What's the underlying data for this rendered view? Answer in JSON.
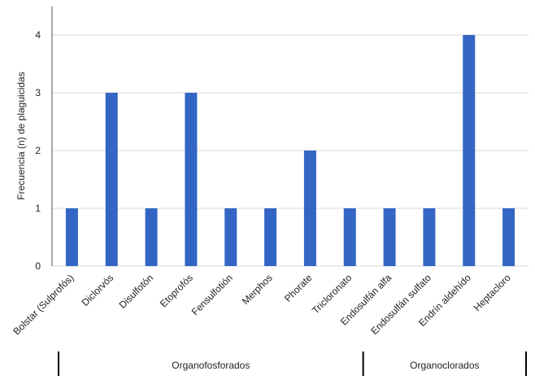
{
  "chart_data": {
    "type": "bar",
    "categories": [
      "Bolstar (Sulprofós)",
      "Diclorvós",
      "Disulfotón",
      "Etoprofós",
      "Fensulfotión",
      "Merphos",
      "Phorate",
      "Tricloronato",
      "Endosulfán alfa",
      "Endosulfán sulfato",
      "Endrín aldehído",
      "Heptacloro"
    ],
    "values": [
      1,
      3,
      1,
      3,
      1,
      1,
      2,
      1,
      1,
      1,
      4,
      1
    ],
    "ylabel": "Frecuencia (n) de plaguicidas",
    "ylim": [
      0,
      4
    ],
    "yticks": [
      0,
      1,
      2,
      3,
      4
    ],
    "grid": true,
    "bar_color": "#3366c4",
    "groups": [
      {
        "label": "Organofosforados",
        "start": 0,
        "end": 7
      },
      {
        "label": "Organoclorados",
        "start": 8,
        "end": 11
      }
    ]
  }
}
